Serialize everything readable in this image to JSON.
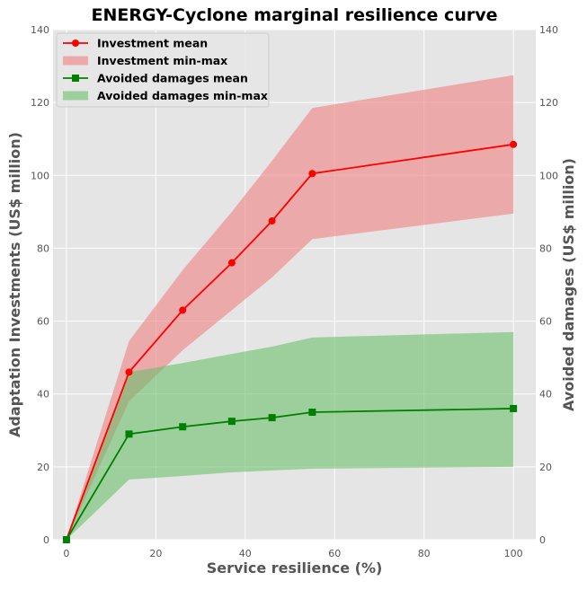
{
  "chart_data": {
    "type": "line",
    "title": "ENERGY-Cyclone marginal resilience curve",
    "xlabel": "Service resilience (%)",
    "ylabel_left": "Adaptation Investments (US$ million)",
    "ylabel_right": "Avoided damages (US$ million)",
    "xlim": [
      -3,
      105
    ],
    "ylim": [
      0,
      140
    ],
    "x_ticks": [
      0,
      20,
      40,
      60,
      80,
      100
    ],
    "y_ticks": [
      0,
      20,
      40,
      60,
      80,
      100,
      120,
      140
    ],
    "grid": true,
    "legend_position": "top-left",
    "x": [
      0,
      14,
      26,
      37,
      46,
      55,
      100
    ],
    "series": [
      {
        "name": "Investment mean",
        "axis": "left",
        "kind": "line",
        "marker": "circle",
        "color": "#ff0000",
        "values": [
          0,
          46,
          63,
          76,
          87.5,
          100.5,
          108.5
        ]
      },
      {
        "name": "Investment min-max",
        "axis": "left",
        "kind": "band",
        "color": "#f08080",
        "min": [
          0,
          38,
          52,
          63,
          72,
          82.5,
          89.5
        ],
        "max": [
          0,
          54.5,
          74,
          90,
          104,
          118.5,
          127.5
        ]
      },
      {
        "name": "Avoided damages mean",
        "axis": "right",
        "kind": "line",
        "marker": "square",
        "color": "#008000",
        "values": [
          0,
          29,
          31,
          32.5,
          33.5,
          35,
          36
        ]
      },
      {
        "name": "Avoided damages min-max",
        "axis": "right",
        "kind": "band",
        "color": "#6cbf6c",
        "min": [
          0,
          16.5,
          17.5,
          18.5,
          19,
          19.5,
          20
        ],
        "max": [
          0,
          46,
          48.5,
          51,
          53,
          55.5,
          57
        ]
      }
    ]
  }
}
